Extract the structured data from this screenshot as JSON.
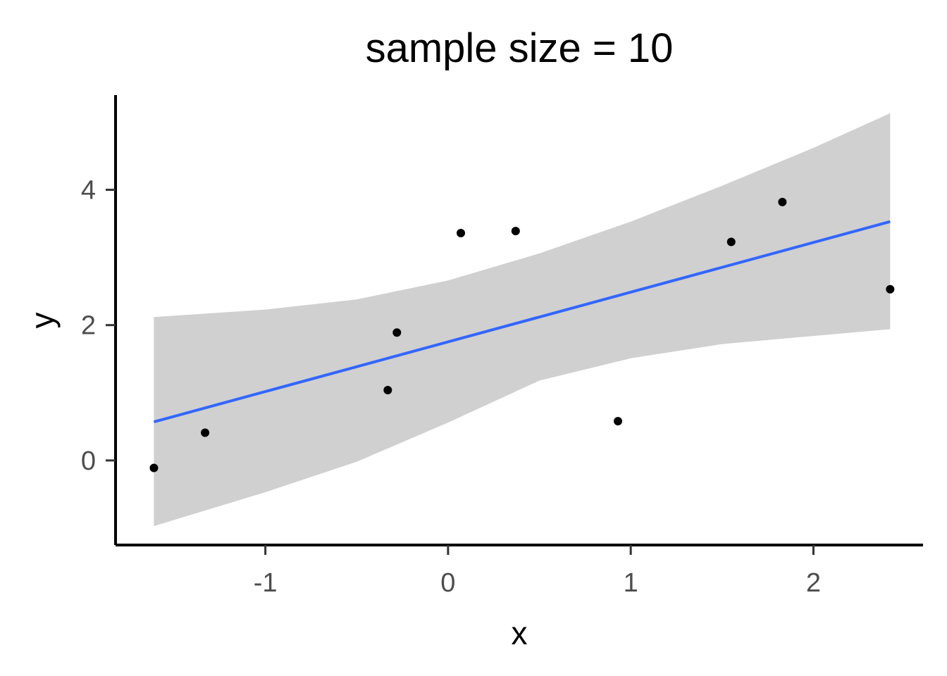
{
  "chart_data": {
    "type": "scatter",
    "title": "sample size = 10",
    "xlabel": "x",
    "ylabel": "y",
    "xlim": [
      -1.82,
      2.6
    ],
    "ylim": [
      -1.25,
      5.4
    ],
    "x_ticks": [
      {
        "value": -1,
        "label": "-1"
      },
      {
        "value": 0,
        "label": "0"
      },
      {
        "value": 1,
        "label": "1"
      },
      {
        "value": 2,
        "label": "2"
      }
    ],
    "y_ticks": [
      {
        "value": 0,
        "label": "0"
      },
      {
        "value": 2,
        "label": "2"
      },
      {
        "value": 4,
        "label": "4"
      }
    ],
    "grid": false,
    "points": [
      {
        "x": -1.61,
        "y": -0.11
      },
      {
        "x": -1.33,
        "y": 0.41
      },
      {
        "x": -0.33,
        "y": 1.04
      },
      {
        "x": -0.28,
        "y": 1.89
      },
      {
        "x": 0.07,
        "y": 3.36
      },
      {
        "x": 0.37,
        "y": 3.39
      },
      {
        "x": 0.93,
        "y": 0.58
      },
      {
        "x": 1.55,
        "y": 3.23
      },
      {
        "x": 1.83,
        "y": 3.82
      },
      {
        "x": 2.42,
        "y": 2.53
      }
    ],
    "fit_line": {
      "x": [
        -1.61,
        2.42
      ],
      "y": [
        0.57,
        3.53
      ]
    },
    "confidence_band": {
      "x": [
        -1.61,
        -1.0,
        -0.5,
        0.0,
        0.5,
        1.0,
        1.5,
        2.0,
        2.42
      ],
      "lower": [
        -0.97,
        -0.47,
        -0.02,
        0.56,
        1.18,
        1.51,
        1.72,
        1.84,
        1.94
      ],
      "upper": [
        2.12,
        2.23,
        2.38,
        2.66,
        3.06,
        3.53,
        4.06,
        4.62,
        5.13
      ]
    },
    "colors": {
      "line": "#3366ff",
      "band": "#d0d0d0",
      "points": "#000000",
      "axis": "#000000"
    }
  }
}
